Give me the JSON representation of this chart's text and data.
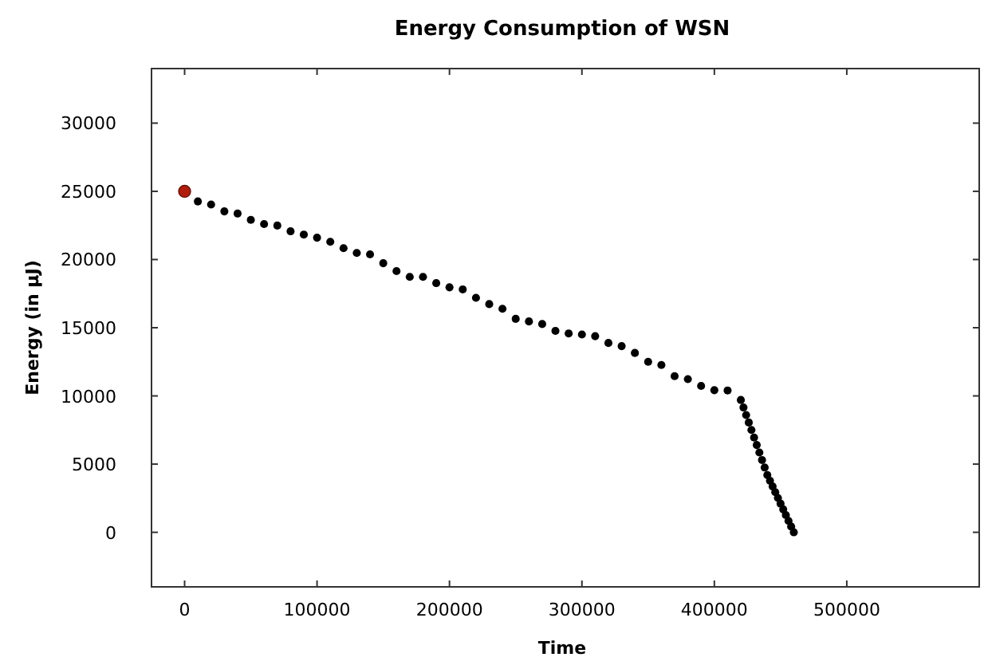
{
  "chart_data": {
    "type": "scatter",
    "title": "Energy Consumption of WSN",
    "xlabel": "Time",
    "ylabel": "Energy (in μJ)",
    "xlim": [
      -25000,
      600000
    ],
    "ylim": [
      -4000,
      34000
    ],
    "xticks": [
      0,
      100000,
      200000,
      300000,
      400000,
      500000
    ],
    "yticks": [
      0,
      5000,
      10000,
      15000,
      20000,
      25000,
      30000
    ],
    "grid": false,
    "marker": "circle",
    "series": [
      {
        "color": "#000000",
        "x": [
          10000,
          20000,
          30000,
          40000,
          50000,
          60000,
          70000,
          80000,
          90000,
          100000,
          110000,
          120000,
          130000,
          140000,
          150000,
          160000,
          170000,
          180000,
          190000,
          200000,
          210000,
          220000,
          230000,
          240000,
          250000,
          260000,
          270000,
          280000,
          290000,
          300000,
          310000,
          320000,
          330000,
          340000,
          350000,
          360000,
          370000,
          380000,
          390000,
          400000,
          410000,
          420000,
          422000,
          424000,
          426000,
          428000,
          430000,
          432000,
          434000,
          436000,
          438000,
          440000,
          442000,
          444000,
          446000,
          448000,
          450000,
          452000,
          454000,
          456000,
          458000,
          460000
        ],
        "values": [
          24260,
          24030,
          23530,
          23370,
          22910,
          22600,
          22490,
          22070,
          21830,
          21600,
          21300,
          20830,
          20480,
          20380,
          19730,
          19150,
          18730,
          18730,
          18270,
          17960,
          17810,
          17190,
          16730,
          16390,
          15650,
          15460,
          15270,
          14770,
          14580,
          14500,
          14380,
          13880,
          13650,
          13150,
          12500,
          12270,
          11450,
          11230,
          10730,
          10420,
          10400,
          9700,
          9150,
          8600,
          8050,
          7500,
          6950,
          6400,
          5850,
          5300,
          4750,
          4200,
          3780,
          3360,
          2940,
          2520,
          2100,
          1680,
          1260,
          840,
          420,
          0
        ]
      },
      {
        "color": "#b01c0c",
        "x": [
          0
        ],
        "values": [
          25000
        ]
      }
    ]
  }
}
